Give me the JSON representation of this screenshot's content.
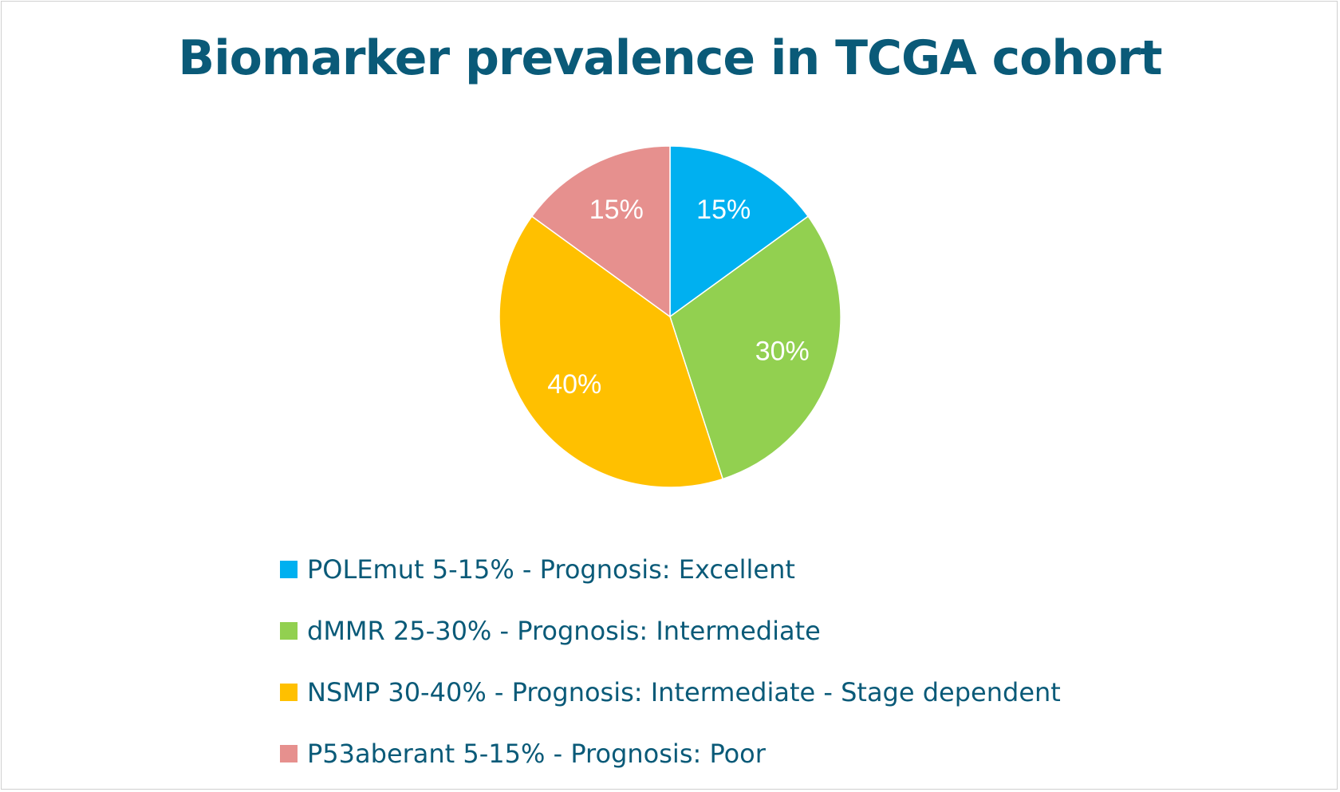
{
  "chart_data": {
    "type": "pie",
    "title": "Biomarker prevalence in TCGA cohort",
    "slices": [
      {
        "legend": "POLEmut 5-15% - Prognosis: Excellent",
        "value": 15,
        "label": "15%",
        "color": "#00b0f0"
      },
      {
        "legend": "dMMR 25-30% - Prognosis: Intermediate",
        "value": 30,
        "label": "30%",
        "color": "#92d050"
      },
      {
        "legend": "NSMP 30-40% - Prognosis: Intermediate - Stage dependent",
        "value": 40,
        "label": "40%",
        "color": "#ffc000"
      },
      {
        "legend": "P53aberant 5-15% - Prognosis: Poor",
        "value": 15,
        "label": "15%",
        "color": "#e6908e"
      }
    ],
    "legend_position": "bottom",
    "start_angle_deg": 0,
    "direction": "clockwise"
  }
}
